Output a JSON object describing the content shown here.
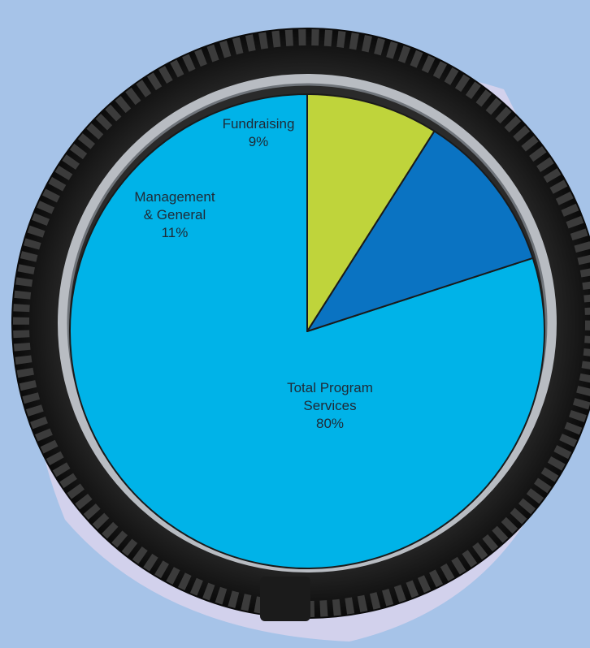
{
  "chart_data": {
    "type": "pie",
    "slices": [
      {
        "label_lines": [
          "Total Program",
          "Services",
          "80%"
        ],
        "value": 80,
        "color": "#00b3e8"
      },
      {
        "label_lines": [
          "Management",
          "& General",
          "11%"
        ],
        "value": 11,
        "color": "#0a73c2"
      },
      {
        "label_lines": [
          "Fundraising",
          "9%"
        ],
        "value": 9,
        "color": "#bfd43b"
      }
    ],
    "start_direction": "top",
    "slice_order": "counterclockwise",
    "legend": "none",
    "decoration": "bicycle-tire"
  }
}
